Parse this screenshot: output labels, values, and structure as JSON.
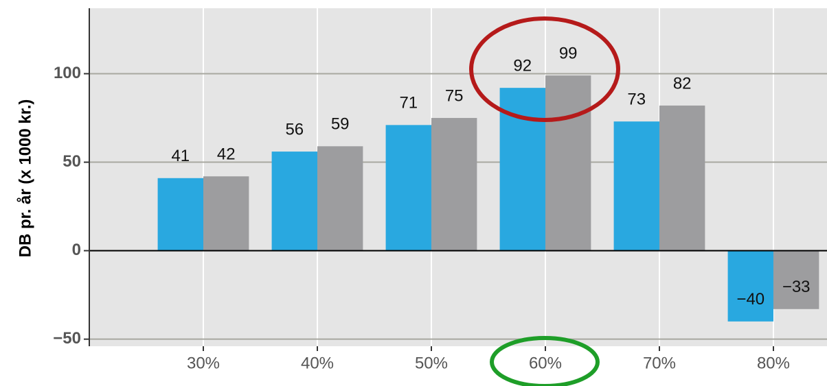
{
  "chart_data": {
    "type": "bar",
    "y_label": "DB pr. år (x 1000 kr.)",
    "x": [
      30,
      40,
      50,
      60,
      70,
      80
    ],
    "xlim": [
      20,
      84.7
    ],
    "xticks": [
      {
        "value": 30,
        "label": "30%"
      },
      {
        "value": 40,
        "label": "40%"
      },
      {
        "value": 50,
        "label": "50%"
      },
      {
        "value": 60,
        "label": "60%"
      },
      {
        "value": 70,
        "label": "70%"
      },
      {
        "value": 80,
        "label": "80%"
      }
    ],
    "ylim": [
      -54,
      137
    ],
    "yticks": [
      {
        "value": -50,
        "label": "−50"
      },
      0,
      50,
      100
    ],
    "grid": true,
    "series": [
      {
        "color": "#29a8e0",
        "values": [
          41,
          56,
          71,
          92,
          73,
          -40
        ],
        "value_labels": [
          "41",
          "56",
          "71",
          "92",
          "73",
          "−40"
        ]
      },
      {
        "color": "#9d9d9f",
        "values": [
          42,
          59,
          75,
          99,
          82,
          -33
        ],
        "value_labels": [
          "42",
          "59",
          "75",
          "99",
          "82",
          "−33"
        ]
      }
    ]
  }
}
